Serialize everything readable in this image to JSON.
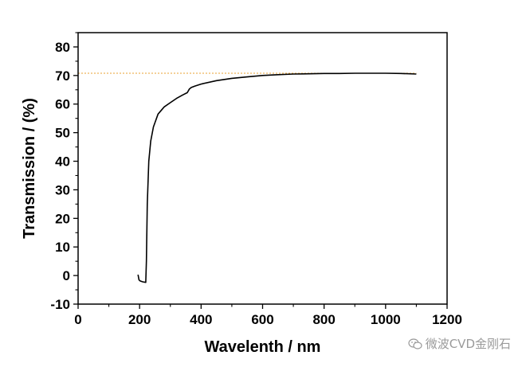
{
  "chart_data": {
    "type": "line",
    "title": "",
    "xlabel": "Wavelenth / nm",
    "ylabel": "Transmission / (%)",
    "xlim": [
      0,
      1200
    ],
    "ylim": [
      -10,
      85
    ],
    "xticks": [
      "0",
      "200",
      "400",
      "600",
      "800",
      "1000",
      "1200"
    ],
    "yticks": [
      "-10",
      "0",
      "10",
      "20",
      "30",
      "40",
      "50",
      "60",
      "70",
      "80"
    ],
    "grid": false,
    "legend": "none",
    "reference_line": {
      "y": 70.8,
      "style": "dashed",
      "color": "#e8a030"
    },
    "series": [
      {
        "color": "#000000",
        "x": [
          195,
          198,
          202,
          210,
          220,
          222,
          225,
          230,
          236,
          245,
          260,
          280,
          300,
          320,
          340,
          355,
          362,
          368,
          380,
          400,
          450,
          500,
          550,
          600,
          650,
          700,
          750,
          800,
          850,
          900,
          950,
          1000,
          1050,
          1100
        ],
        "y": [
          0.3,
          -1.5,
          -1.9,
          -2.2,
          -2.4,
          5.0,
          25.0,
          40.0,
          47.0,
          52.0,
          56.5,
          59.0,
          60.5,
          62.0,
          63.2,
          64.0,
          65.3,
          65.8,
          66.3,
          67.0,
          68.2,
          69.0,
          69.5,
          70.0,
          70.3,
          70.5,
          70.6,
          70.7,
          70.7,
          70.8,
          70.8,
          70.8,
          70.7,
          70.5
        ]
      }
    ]
  },
  "watermark": {
    "text": "微波CVD金刚石",
    "icon": "wechat-icon"
  }
}
